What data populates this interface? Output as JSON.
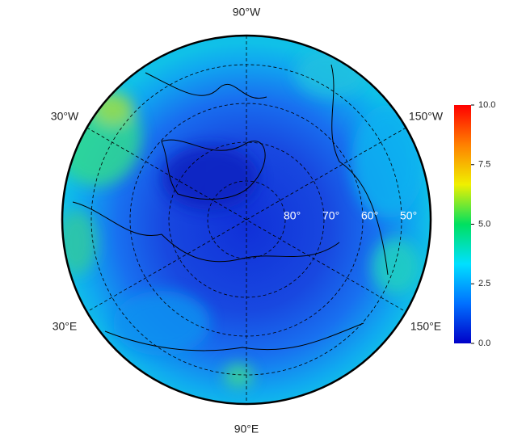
{
  "map": {
    "longitude_labels": [
      "90°W",
      "30°W",
      "150°W",
      "30°E",
      "150°E",
      "90°E"
    ],
    "latitude_labels": [
      {
        "value": 80,
        "label": "80°"
      },
      {
        "value": 70,
        "label": "70°"
      },
      {
        "value": 60,
        "label": "60°"
      },
      {
        "value": 50,
        "label": "50°"
      }
    ],
    "colorbar": {
      "lim": [
        0,
        10
      ],
      "ticks": [
        {
          "value": 0,
          "label": "0.0"
        },
        {
          "value": 2.5,
          "label": "2.5"
        },
        {
          "value": 5,
          "label": "5.0"
        },
        {
          "value": 7.5,
          "label": "7.5"
        },
        {
          "value": 10,
          "label": "10.0"
        }
      ],
      "colors": [
        "#0000c8",
        "#0070ff",
        "#00e0ff",
        "#00e060",
        "#f0f000",
        "#ff8000",
        "#ff0000"
      ]
    }
  }
}
